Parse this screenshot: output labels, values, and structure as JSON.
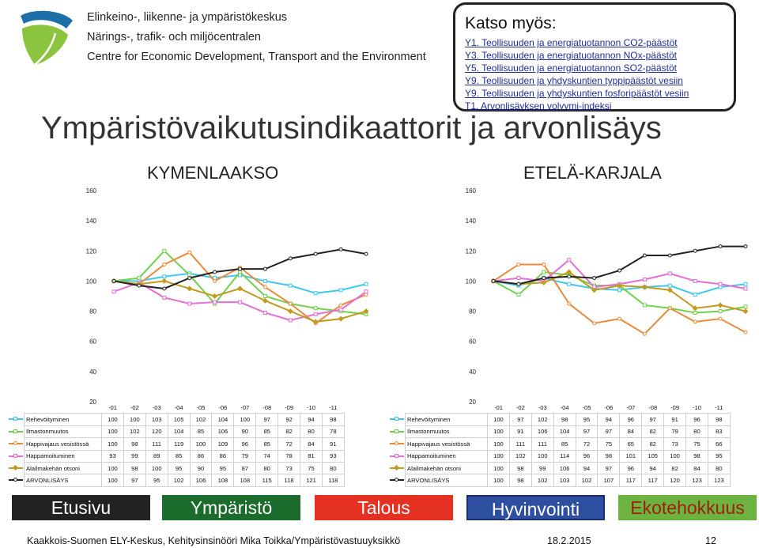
{
  "header": {
    "org_lines": [
      "Elinkeino-, liikenne- ja ympäristökeskus",
      "Närings-, trafik- och miljöcentralen",
      "Centre for Economic Development, Transport and the Environment"
    ],
    "logo_icon": "ely-logo-icon"
  },
  "see_also": {
    "title": "Katso myös:",
    "links": [
      "Y1. Teollisuuden ja energiatuotannon CO2-päästöt",
      "Y3. Teollisuuden ja energiatuotannon NOx-päästöt",
      "Y5. Teollisuuden ja energiatuotannon SO2-päästöt",
      "Y9. Teollisuuden ja yhdyskuntien typpipäästöt vesiin",
      "Y9. Teollisuuden ja yhdyskuntien fosforipäästöt vesiin",
      "T1. Arvonlisäyksen volyymi-indeksi"
    ]
  },
  "main_title": "Ympäristövaikutusindikaattorit ja arvonlisäys",
  "colors": {
    "Rehevöityminen": "#3ec8ef",
    "Ilmastonmuutos": "#72d14c",
    "Happivajaus vesistössä": "#e98b3a",
    "Happamoituminen": "#e46fd5",
    "Alailmakehän otsoni": "#c29a1e",
    "ARVONLISÄYS": "#222222"
  },
  "chart_data": [
    {
      "type": "line",
      "title": "KYMENLAAKSO",
      "yticks": [
        20,
        40,
        60,
        80,
        100,
        120,
        140,
        160
      ],
      "ylim": [
        20,
        160
      ],
      "categories": [
        "-01",
        "-02",
        "-03",
        "-04",
        "-05",
        "-06",
        "-07",
        "-08",
        "-09",
        "-10",
        "-11"
      ],
      "series": [
        {
          "name": "Rehevöityminen",
          "values": [
            "100",
            "100",
            "103",
            "105",
            "102",
            "104",
            "100",
            "97",
            "92",
            "94",
            "98"
          ]
        },
        {
          "name": "Ilmastonmuutos",
          "values": [
            "100",
            "102",
            "120",
            "104",
            "85",
            "106",
            "90",
            "85",
            "82",
            "80",
            "78"
          ]
        },
        {
          "name": "Happivajaus vesistössä",
          "values": [
            "100",
            "98",
            "111",
            "119",
            "100",
            "109",
            "96",
            "85",
            "72",
            "84",
            "91"
          ]
        },
        {
          "name": "Happamoituminen",
          "values": [
            "93",
            "99",
            "89",
            "85",
            "86",
            "86",
            "79",
            "74",
            "78",
            "81",
            "93"
          ]
        },
        {
          "name": "Alailmakehän otsoni",
          "values": [
            "100",
            "98",
            "100",
            "95",
            "90",
            "95",
            "87",
            "80",
            "73",
            "75",
            "80"
          ]
        },
        {
          "name": "ARVONLISÄYS",
          "values": [
            "100",
            "97",
            "95",
            "102",
            "106",
            "108",
            "108",
            "115",
            "118",
            "121",
            "118"
          ]
        }
      ]
    },
    {
      "type": "line",
      "title": "ETELÄ-KARJALA",
      "yticks": [
        20,
        40,
        60,
        80,
        100,
        120,
        140,
        160
      ],
      "ylim": [
        20,
        160
      ],
      "categories": [
        "-01",
        "-02",
        "-03",
        "-04",
        "-05",
        "-06",
        "-07",
        "-08",
        "-09",
        "-10",
        "-11"
      ],
      "series": [
        {
          "name": "Rehevöityminen",
          "values": [
            "100",
            "97",
            "102",
            "98",
            "95",
            "94",
            "96",
            "97",
            "91",
            "96",
            "98"
          ]
        },
        {
          "name": "Ilmastonmuutos",
          "values": [
            "100",
            "91",
            "106",
            "104",
            "97",
            "97",
            "84",
            "82",
            "79",
            "80",
            "83"
          ]
        },
        {
          "name": "Happivajaus vesistössä",
          "values": [
            "100",
            "111",
            "111",
            "85",
            "72",
            "75",
            "65",
            "82",
            "73",
            "75",
            "66"
          ]
        },
        {
          "name": "Happamoituminen",
          "values": [
            "100",
            "102",
            "100",
            "114",
            "96",
            "98",
            "101",
            "105",
            "100",
            "98",
            "95"
          ]
        },
        {
          "name": "Alailmakehän otsoni",
          "values": [
            "100",
            "98",
            "99",
            "106",
            "94",
            "97",
            "96",
            "94",
            "82",
            "84",
            "80"
          ]
        },
        {
          "name": "ARVONLISÄYS",
          "values": [
            "100",
            "98",
            "102",
            "103",
            "102",
            "107",
            "117",
            "117",
            "120",
            "123",
            "123"
          ]
        }
      ]
    }
  ],
  "nav": {
    "buttons": [
      "Etusivu",
      "Ympäristö",
      "Talous",
      "Hyvinvointi",
      "Ekotehokkuus"
    ]
  },
  "footer": {
    "text": "Kaakkois-Suomen ELY-Keskus, Kehitysinsinööri Mika Toikka/Ympäristövastuuyksikkö",
    "date": "18.2.2015",
    "page": "12"
  }
}
